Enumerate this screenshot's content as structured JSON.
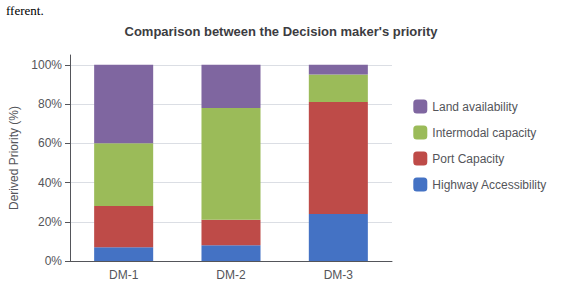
{
  "chart_data": {
    "type": "bar",
    "stacked": true,
    "title": "Comparison between the Decision maker's priority",
    "ylabel": "Derived Priority (%)",
    "annotations": [
      "fferent."
    ],
    "categories": [
      "DM-1",
      "DM-2",
      "DM-3"
    ],
    "series": [
      {
        "name": "Highway Accessibility",
        "color": "#4472C4",
        "values": [
          7,
          8,
          24
        ]
      },
      {
        "name": "Port Capacity",
        "color": "#BE4B48",
        "values": [
          21,
          13,
          57
        ]
      },
      {
        "name": "Intermodal capacity",
        "color": "#9BBB59",
        "values": [
          32,
          57,
          14
        ]
      },
      {
        "name": "Land availability",
        "color": "#7F66A0",
        "values": [
          40,
          22,
          5
        ]
      }
    ],
    "ylim": [
      0,
      105
    ],
    "yticks": [
      {
        "value": 0,
        "label": "0%"
      },
      {
        "value": 20,
        "label": "20%"
      },
      {
        "value": 40,
        "label": "40%"
      },
      {
        "value": 60,
        "label": "60%"
      },
      {
        "value": 80,
        "label": "80%"
      },
      {
        "value": 100,
        "label": "100%"
      }
    ],
    "grid": true,
    "legend": "right"
  }
}
